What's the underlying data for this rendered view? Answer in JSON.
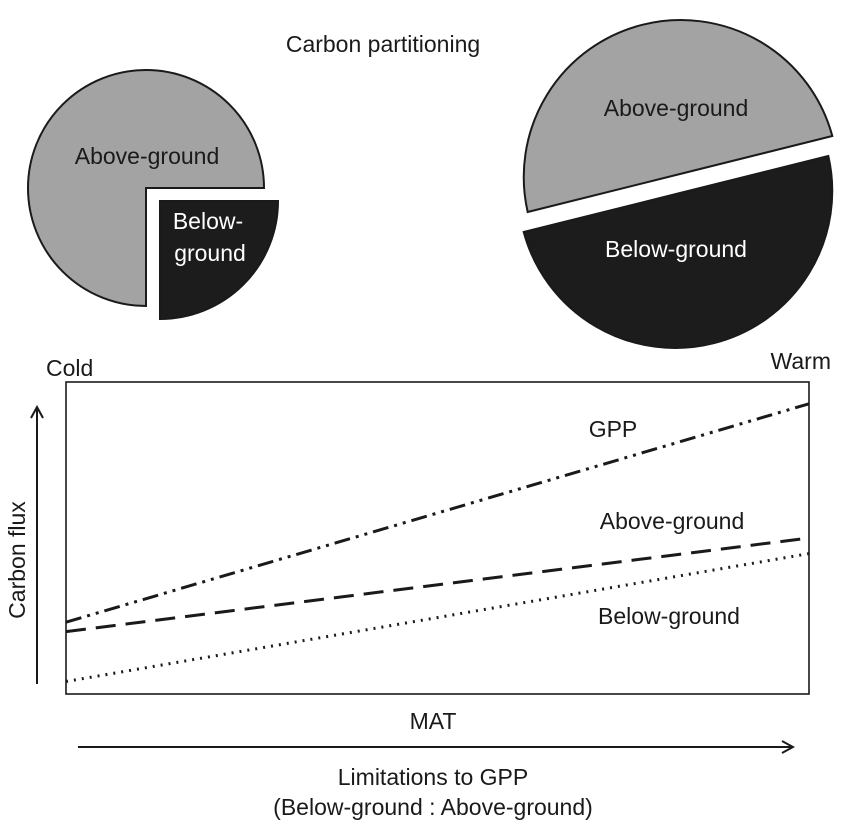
{
  "title": "Carbon partitioning",
  "pies": [
    {
      "name": "cold",
      "slices": [
        {
          "label_lines": [
            "Above-ground"
          ],
          "fraction": 0.75,
          "color": "#a3a3a3"
        },
        {
          "label_lines": [
            "Below-",
            "ground"
          ],
          "fraction": 0.25,
          "color": "#1c1c1c"
        }
      ]
    },
    {
      "name": "warm",
      "slices": [
        {
          "label_lines": [
            "Above-ground"
          ],
          "fraction": 0.5,
          "color": "#a3a3a3"
        },
        {
          "label_lines": [
            "Below-ground"
          ],
          "fraction": 0.5,
          "color": "#1c1c1c"
        }
      ]
    }
  ],
  "plot": {
    "corner_left": "Cold",
    "corner_right": "Warm",
    "y_axis_label": "Carbon flux",
    "x_axis_label": "MAT",
    "bottom_label_line1": "Limitations to GPP",
    "bottom_label_line2": "(Below-ground : Above-ground)"
  },
  "chart_data": {
    "type": "line",
    "xlabel": "MAT",
    "ylabel": "Carbon flux",
    "x": [
      0,
      1
    ],
    "xlim": [
      0,
      1
    ],
    "ylim": [
      0,
      1
    ],
    "grid": false,
    "series": [
      {
        "name": "GPP",
        "values": [
          0.23,
          0.93
        ],
        "style": "dash-dot-dot"
      },
      {
        "name": "Above-ground",
        "values": [
          0.2,
          0.5
        ],
        "style": "dashed"
      },
      {
        "name": "Below-ground",
        "values": [
          0.04,
          0.45
        ],
        "style": "dotted"
      }
    ]
  }
}
